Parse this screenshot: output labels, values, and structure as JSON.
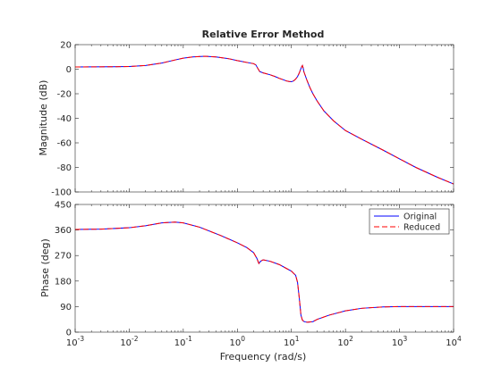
{
  "figure": {
    "title": "Relative Error Method",
    "xlabel": "Frequency  (rad/s)"
  },
  "chart_data": [
    {
      "type": "line",
      "panel": "magnitude",
      "title": "Relative Error Method",
      "ylabel": "Magnitude (dB)",
      "xscale": "log",
      "xlim": [
        0.001,
        10000
      ],
      "ylim": [
        -100,
        20
      ],
      "yticks": [
        {
          "v": 20,
          "label": "20"
        },
        {
          "v": 0,
          "label": "0"
        },
        {
          "v": -20,
          "label": "-20"
        },
        {
          "v": -40,
          "label": "-40"
        },
        {
          "v": -60,
          "label": "-60"
        },
        {
          "v": -80,
          "label": "-80"
        },
        {
          "v": -100,
          "label": "-100"
        }
      ],
      "grid": false,
      "series": [
        {
          "name": "Original",
          "color": "#0000ff",
          "dash": "solid",
          "x": [
            0.001,
            0.002,
            0.005,
            0.01,
            0.02,
            0.04,
            0.07,
            0.1,
            0.15,
            0.25,
            0.4,
            0.7,
            1,
            1.5,
            2,
            2.2,
            2.4,
            2.6,
            3,
            4,
            5,
            6,
            7,
            8,
            9,
            10,
            11,
            12,
            13,
            14,
            15,
            15.5,
            16,
            16.5,
            17,
            18,
            19,
            20,
            22,
            25,
            30,
            40,
            60,
            100,
            200,
            500,
            1000,
            2000,
            5000,
            10000
          ],
          "y": [
            1.8,
            1.9,
            2.0,
            2.2,
            3.0,
            5.0,
            7.5,
            9.0,
            10.0,
            10.5,
            10.0,
            8.5,
            7.0,
            5.5,
            4.5,
            3.5,
            0.5,
            -2.0,
            -3.0,
            -4.5,
            -6.0,
            -7.5,
            -8.5,
            -9.5,
            -10.0,
            -10.2,
            -9.5,
            -8.0,
            -6.0,
            -3.0,
            0.5,
            2.0,
            3.0,
            1.0,
            -2.0,
            -5.0,
            -8.0,
            -10.5,
            -15.0,
            -20.0,
            -26.0,
            -34.0,
            -42.0,
            -50.0,
            -57.0,
            -66.0,
            -73.0,
            -80.0,
            -88.0,
            -93.5
          ]
        },
        {
          "name": "Reduced",
          "color": "#ff0000",
          "dash": "dashed",
          "x": [
            0.001,
            0.002,
            0.005,
            0.01,
            0.02,
            0.04,
            0.07,
            0.1,
            0.15,
            0.25,
            0.4,
            0.7,
            1,
            1.5,
            2,
            2.2,
            2.4,
            2.6,
            3,
            4,
            5,
            6,
            7,
            8,
            9,
            10,
            11,
            12,
            13,
            14,
            15,
            15.5,
            16,
            16.5,
            17,
            18,
            19,
            20,
            22,
            25,
            30,
            40,
            60,
            100,
            200,
            500,
            1000,
            2000,
            5000,
            10000
          ],
          "y": [
            1.8,
            1.9,
            2.0,
            2.2,
            3.0,
            5.0,
            7.5,
            9.0,
            10.0,
            10.5,
            10.0,
            8.5,
            7.0,
            5.5,
            4.5,
            3.5,
            0.5,
            -2.0,
            -3.0,
            -4.5,
            -6.0,
            -7.5,
            -8.5,
            -9.5,
            -10.0,
            -10.2,
            -9.5,
            -8.0,
            -6.0,
            -3.0,
            0.5,
            2.0,
            3.0,
            1.0,
            -2.0,
            -5.0,
            -8.0,
            -10.5,
            -15.0,
            -20.0,
            -26.0,
            -34.0,
            -42.0,
            -50.0,
            -57.0,
            -66.0,
            -73.0,
            -80.0,
            -88.0,
            -93.5
          ]
        }
      ]
    },
    {
      "type": "line",
      "panel": "phase",
      "ylabel": "Phase (deg)",
      "xscale": "log",
      "xlim": [
        0.001,
        10000
      ],
      "ylim": [
        0,
        450
      ],
      "yticks": [
        {
          "v": 0,
          "label": "0"
        },
        {
          "v": 90,
          "label": "90"
        },
        {
          "v": 180,
          "label": "180"
        },
        {
          "v": 270,
          "label": "270"
        },
        {
          "v": 360,
          "label": "360"
        },
        {
          "v": 450,
          "label": "450"
        }
      ],
      "grid": false,
      "legend": {
        "position": "top-right"
      },
      "series": [
        {
          "name": "Original",
          "color": "#0000ff",
          "dash": "solid",
          "x": [
            0.001,
            0.003,
            0.01,
            0.02,
            0.04,
            0.07,
            0.1,
            0.2,
            0.5,
            1,
            1.5,
            2,
            2.3,
            2.5,
            2.7,
            3,
            4,
            6,
            8,
            10,
            12,
            13,
            14,
            15,
            16,
            17,
            18,
            20,
            25,
            30,
            50,
            100,
            200,
            500,
            1000,
            3000,
            10000
          ],
          "y": [
            362,
            363,
            368,
            375,
            385,
            388,
            385,
            370,
            340,
            315,
            298,
            280,
            260,
            242,
            250,
            255,
            250,
            238,
            225,
            215,
            200,
            175,
            120,
            60,
            42,
            38,
            36,
            35,
            37,
            45,
            60,
            75,
            84,
            89,
            90,
            90,
            90
          ]
        },
        {
          "name": "Reduced",
          "color": "#ff0000",
          "dash": "dashed",
          "x": [
            0.001,
            0.003,
            0.01,
            0.02,
            0.04,
            0.07,
            0.1,
            0.2,
            0.5,
            1,
            1.5,
            2,
            2.3,
            2.5,
            2.7,
            3,
            4,
            6,
            8,
            10,
            12,
            13,
            14,
            15,
            16,
            17,
            18,
            20,
            25,
            30,
            50,
            100,
            200,
            500,
            1000,
            3000,
            10000
          ],
          "y": [
            362,
            363,
            368,
            375,
            385,
            388,
            385,
            370,
            340,
            315,
            298,
            280,
            260,
            242,
            250,
            255,
            250,
            238,
            225,
            215,
            200,
            175,
            120,
            60,
            42,
            38,
            36,
            35,
            37,
            45,
            60,
            75,
            84,
            89,
            90,
            90,
            90
          ]
        }
      ]
    }
  ]
}
